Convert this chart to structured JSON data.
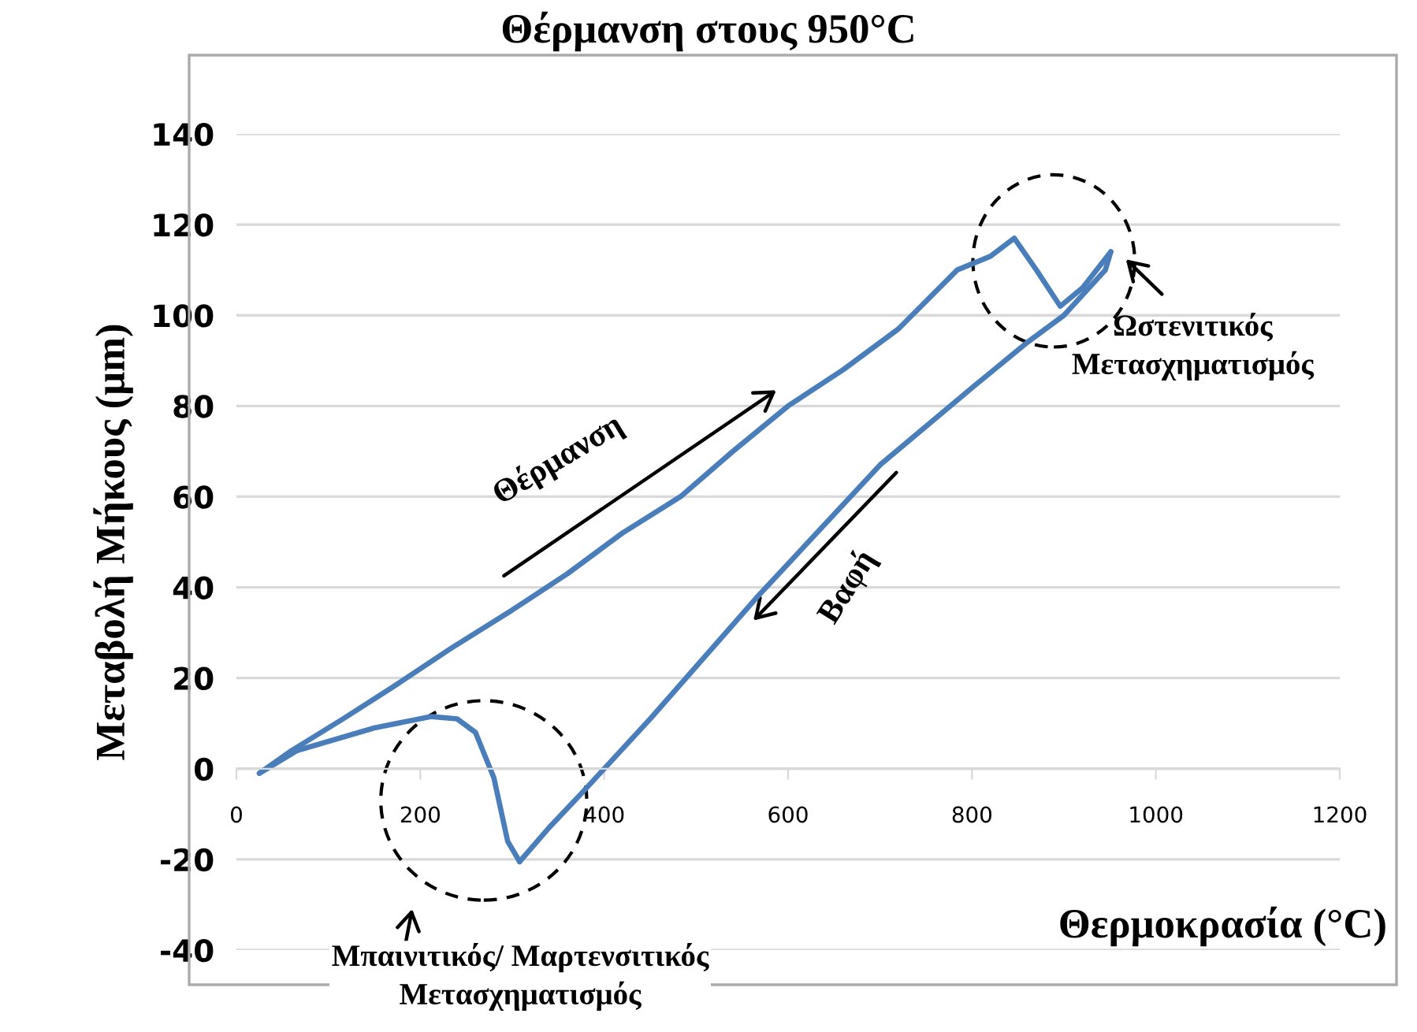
{
  "chart_data": {
    "type": "line",
    "title": "Θέρμανση στους 950°C",
    "xlabel": "Θερμοκρασία (°C)",
    "ylabel": "Μεταβολή Μήκους (μm)",
    "series": [
      {
        "color": "#4a7ebb",
        "x": [
          25,
          60,
          116,
          170,
          233,
          300,
          360,
          420,
          483,
          540,
          600,
          660,
          720,
          784,
          820,
          846,
          870,
          896,
          920,
          951
        ],
        "values": [
          -1,
          4,
          11,
          18,
          26.5,
          35,
          43,
          52,
          60,
          70,
          80,
          88,
          97,
          110,
          113,
          117,
          110,
          102,
          106,
          114
        ]
      },
      {
        "color": "#4a7ebb",
        "x": [
          308,
          340,
          375,
          450,
          567,
          700,
          800,
          860,
          900,
          945,
          951
        ],
        "values": [
          -20.5,
          -13,
          -5.5,
          11,
          38,
          67,
          84,
          94,
          100,
          110,
          114
        ]
      },
      {
        "color": "#4a7ebb",
        "x": [
          25,
          66,
          150,
          212,
          240,
          260,
          280,
          295,
          308
        ],
        "values": [
          -1,
          4,
          9,
          11.5,
          11,
          8,
          -2,
          -16,
          -20.5
        ]
      }
    ],
    "xlim": [
      0,
      1200
    ],
    "xticks": [
      0,
      200,
      400,
      600,
      800,
      1000,
      1200
    ],
    "ylim": [
      -40,
      140
    ],
    "yticks": [
      -40,
      -20,
      0,
      20,
      40,
      60,
      80,
      100,
      120,
      140
    ],
    "grid": "y",
    "legend": false,
    "marker": "none",
    "line_style": "solid",
    "annotations": [
      "Θέρμανση",
      "Βαφή",
      "Ωστενιτικός\nΜετασχηματισμός",
      "Μπαινιτικός/ Μαρτενσιτικός\nΜετασχηματισμός"
    ]
  }
}
